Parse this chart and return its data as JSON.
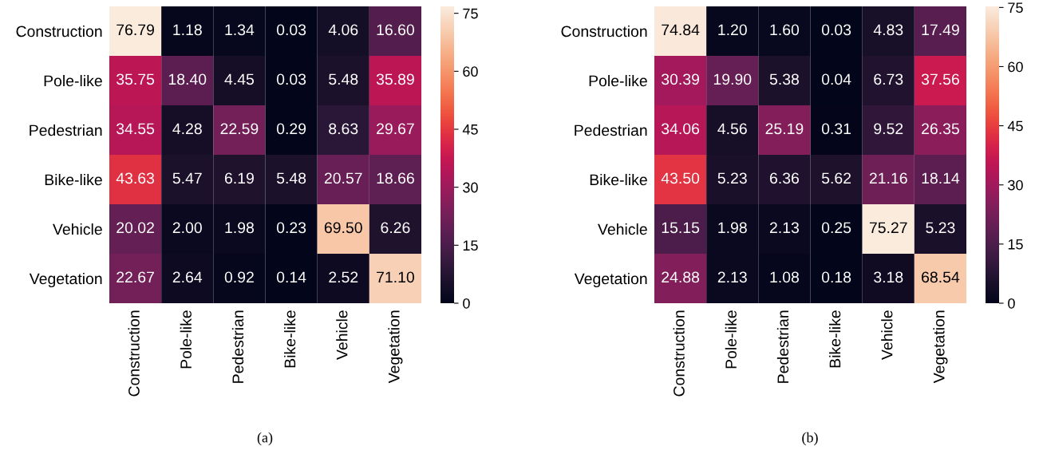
{
  "chart_data": [
    {
      "type": "heatmap",
      "categories": [
        "Construction",
        "Pole-like",
        "Pedestrian",
        "Bike-like",
        "Vehicle",
        "Vegetation"
      ],
      "y_categories": [
        "Construction",
        "Pole-like",
        "Pedestrian",
        "Bike-like",
        "Vehicle",
        "Vegetation"
      ],
      "cells": [
        [
          76.79,
          1.18,
          1.34,
          0.03,
          4.06,
          16.6
        ],
        [
          35.75,
          18.4,
          4.45,
          0.03,
          5.48,
          35.89
        ],
        [
          34.55,
          4.28,
          22.59,
          0.29,
          8.63,
          29.67
        ],
        [
          43.63,
          5.47,
          6.19,
          5.48,
          20.57,
          18.66
        ],
        [
          20.02,
          2.0,
          1.98,
          0.23,
          69.5,
          6.26
        ],
        [
          22.67,
          2.64,
          0.92,
          0.14,
          2.52,
          71.1
        ]
      ],
      "cell_labels": [
        [
          "76.79",
          "1.18",
          "1.34",
          "0.03",
          "4.06",
          "16.60"
        ],
        [
          "35.75",
          "18.40",
          "4.45",
          "0.03",
          "5.48",
          "35.89"
        ],
        [
          "34.55",
          "4.28",
          "22.59",
          "0.29",
          "8.63",
          "29.67"
        ],
        [
          "43.63",
          "5.47",
          "6.19",
          "5.48",
          "20.57",
          "18.66"
        ],
        [
          "20.02",
          "2.00",
          "1.98",
          "0.23",
          "69.50",
          "6.26"
        ],
        [
          "22.67",
          "2.64",
          "0.92",
          "0.14",
          "2.52",
          "71.10"
        ]
      ],
      "clim": [
        0,
        76.79
      ],
      "cticks": [
        0,
        15,
        30,
        45,
        60,
        75
      ],
      "annotations": [
        "(a)"
      ]
    },
    {
      "type": "heatmap",
      "categories": [
        "Construction",
        "Pole-like",
        "Pedestrian",
        "Bike-like",
        "Vehicle",
        "Vegetation"
      ],
      "y_categories": [
        "Construction",
        "Pole-like",
        "Pedestrian",
        "Bike-like",
        "Vehicle",
        "Vegetation"
      ],
      "cells": [
        [
          74.84,
          1.2,
          1.6,
          0.03,
          4.83,
          17.49
        ],
        [
          30.39,
          19.9,
          5.38,
          0.04,
          6.73,
          37.56
        ],
        [
          34.06,
          4.56,
          25.19,
          0.31,
          9.52,
          26.35
        ],
        [
          43.5,
          5.23,
          6.36,
          5.62,
          21.16,
          18.14
        ],
        [
          15.15,
          1.98,
          2.13,
          0.25,
          75.27,
          5.23
        ],
        [
          24.88,
          2.13,
          1.08,
          0.18,
          3.18,
          68.54
        ]
      ],
      "cell_labels": [
        [
          "74.84",
          "1.20",
          "1.60",
          "0.03",
          "4.83",
          "17.49"
        ],
        [
          "30.39",
          "19.90",
          "5.38",
          "0.04",
          "6.73",
          "37.56"
        ],
        [
          "34.06",
          "4.56",
          "25.19",
          "0.31",
          "9.52",
          "26.35"
        ],
        [
          "43.50",
          "5.23",
          "6.36",
          "5.62",
          "21.16",
          "18.14"
        ],
        [
          "15.15",
          "1.98",
          "2.13",
          "0.25",
          "75.27",
          "5.23"
        ],
        [
          "24.88",
          "2.13",
          "1.08",
          "0.18",
          "3.18",
          "68.54"
        ]
      ],
      "clim": [
        0,
        75.27
      ],
      "cticks": [
        0,
        15,
        30,
        45,
        60,
        75
      ],
      "annotations": [
        "(b)"
      ]
    }
  ]
}
